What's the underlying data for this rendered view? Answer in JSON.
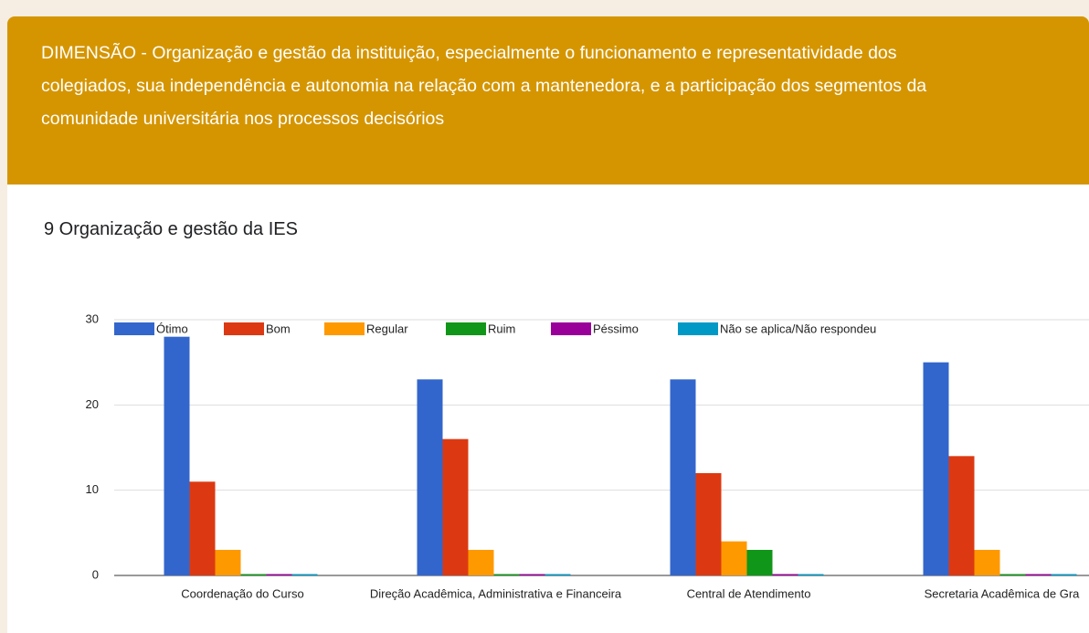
{
  "header": {
    "title": "DIMENSÃO - Organização e gestão da instituição, especialmente o funcionamento e representatividade dos colegiados, sua independência e autonomia na relação com a mantenedora, e a participação dos segmentos da comunidade universitária nos processos decisórios"
  },
  "chart_data": {
    "type": "bar",
    "title": "9 Organização e gestão da IES",
    "categories": [
      "Coordenação do Curso",
      "Direção Acadêmica, Administrativa e Financeira",
      "Central de Atendimento",
      "Secretaria Acadêmica de Gra"
    ],
    "series": [
      {
        "name": "Ótimo",
        "color": "#3366cc",
        "values": [
          28,
          23,
          23,
          25
        ]
      },
      {
        "name": "Bom",
        "color": "#dc3912",
        "values": [
          11,
          16,
          12,
          14
        ]
      },
      {
        "name": "Regular",
        "color": "#ff9900",
        "values": [
          3,
          3,
          4,
          3
        ]
      },
      {
        "name": "Ruim",
        "color": "#109618",
        "values": [
          0,
          0,
          3,
          0
        ]
      },
      {
        "name": "Péssimo",
        "color": "#990099",
        "values": [
          0,
          0,
          0,
          0
        ]
      },
      {
        "name": "Não se aplica/Não respondeu",
        "color": "#0099c6",
        "values": [
          0,
          0,
          0,
          0
        ]
      }
    ],
    "ylim": [
      0,
      30
    ],
    "yticks": [
      0,
      10,
      20,
      30
    ],
    "grid": true,
    "legend": "top"
  }
}
